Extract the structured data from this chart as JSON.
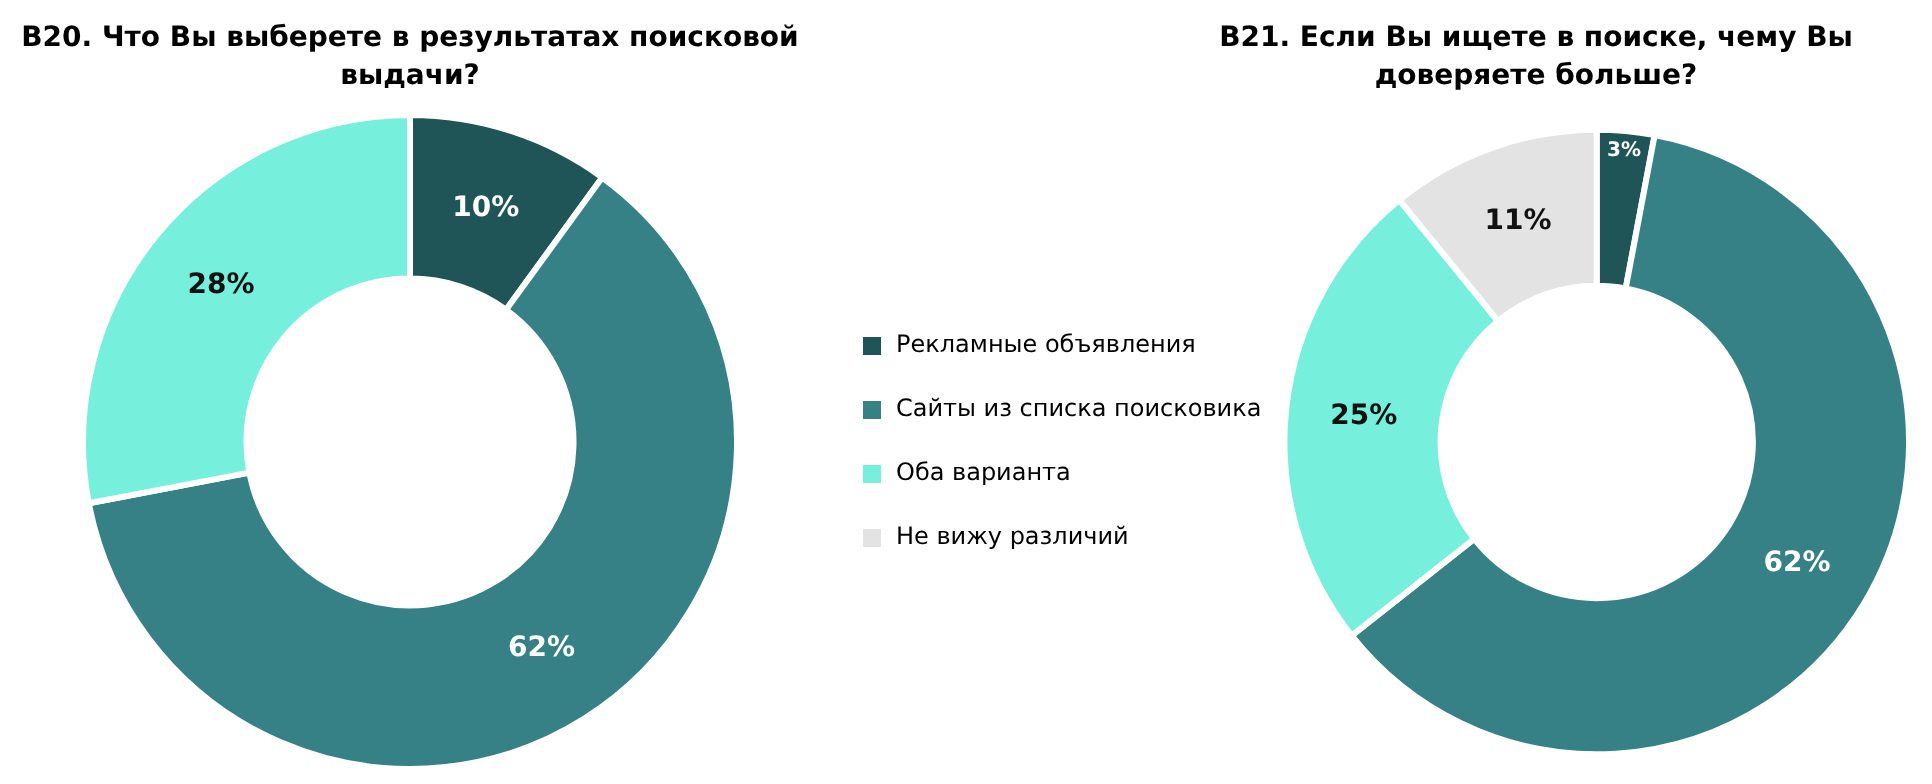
{
  "chart_data": [
    {
      "type": "donut",
      "title": "B20. Что Вы выберете в результатах поисковой выдачи?",
      "categories": [
        null,
        null,
        null
      ],
      "values": [
        10,
        62,
        28
      ],
      "colors": [
        "#1f5557",
        "#358185",
        "#76f0dc"
      ],
      "value_labels": [
        "10%",
        "62%",
        "28%"
      ],
      "legend": false
    },
    {
      "type": "donut",
      "title": "B21. Если Вы ищете в поиске, чему Вы доверяете больше?",
      "categories": [
        "Рекламные объявления",
        "Сайты из списка поисковика",
        "Оба варианта",
        "Не вижу различий"
      ],
      "values": [
        3,
        62,
        25,
        11
      ],
      "colors": [
        "#1f5557",
        "#358185",
        "#76f0dc",
        "#e3e3e3"
      ],
      "value_labels": [
        "3%",
        "62%",
        "25%",
        "11%"
      ],
      "legend": "left"
    }
  ]
}
